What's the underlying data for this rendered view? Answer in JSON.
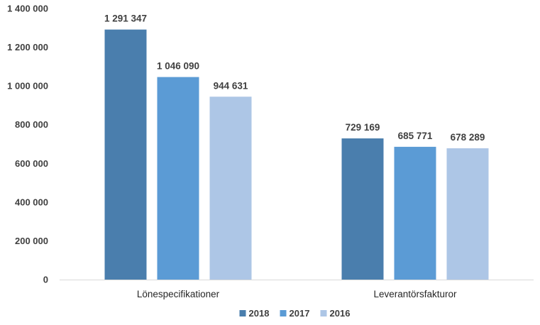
{
  "chart_data": {
    "type": "bar",
    "categories": [
      "Lönespecifikationer",
      "Leverantörsfakturor"
    ],
    "series": [
      {
        "name": "2018",
        "color": "#4a7ead",
        "values": [
          1291347,
          729169
        ],
        "labels": [
          "1 291 347",
          "729 169"
        ]
      },
      {
        "name": "2017",
        "color": "#5b9bd5",
        "values": [
          1046090,
          685771
        ],
        "labels": [
          "1 046 090",
          "685 771"
        ]
      },
      {
        "name": "2016",
        "color": "#adc6e6",
        "values": [
          944631,
          678289
        ],
        "labels": [
          "944 631",
          "678 289"
        ]
      }
    ],
    "ylim": [
      0,
      1400000
    ],
    "yticks": [
      0,
      200000,
      400000,
      600000,
      800000,
      1000000,
      1200000,
      1400000
    ],
    "ytick_labels": [
      "0",
      "200 000",
      "400 000",
      "600 000",
      "800 000",
      "1 000 000",
      "1 200 000",
      "1 400 000"
    ],
    "title": "",
    "xlabel": "",
    "ylabel": "",
    "grid": false,
    "legend": "bottom"
  }
}
